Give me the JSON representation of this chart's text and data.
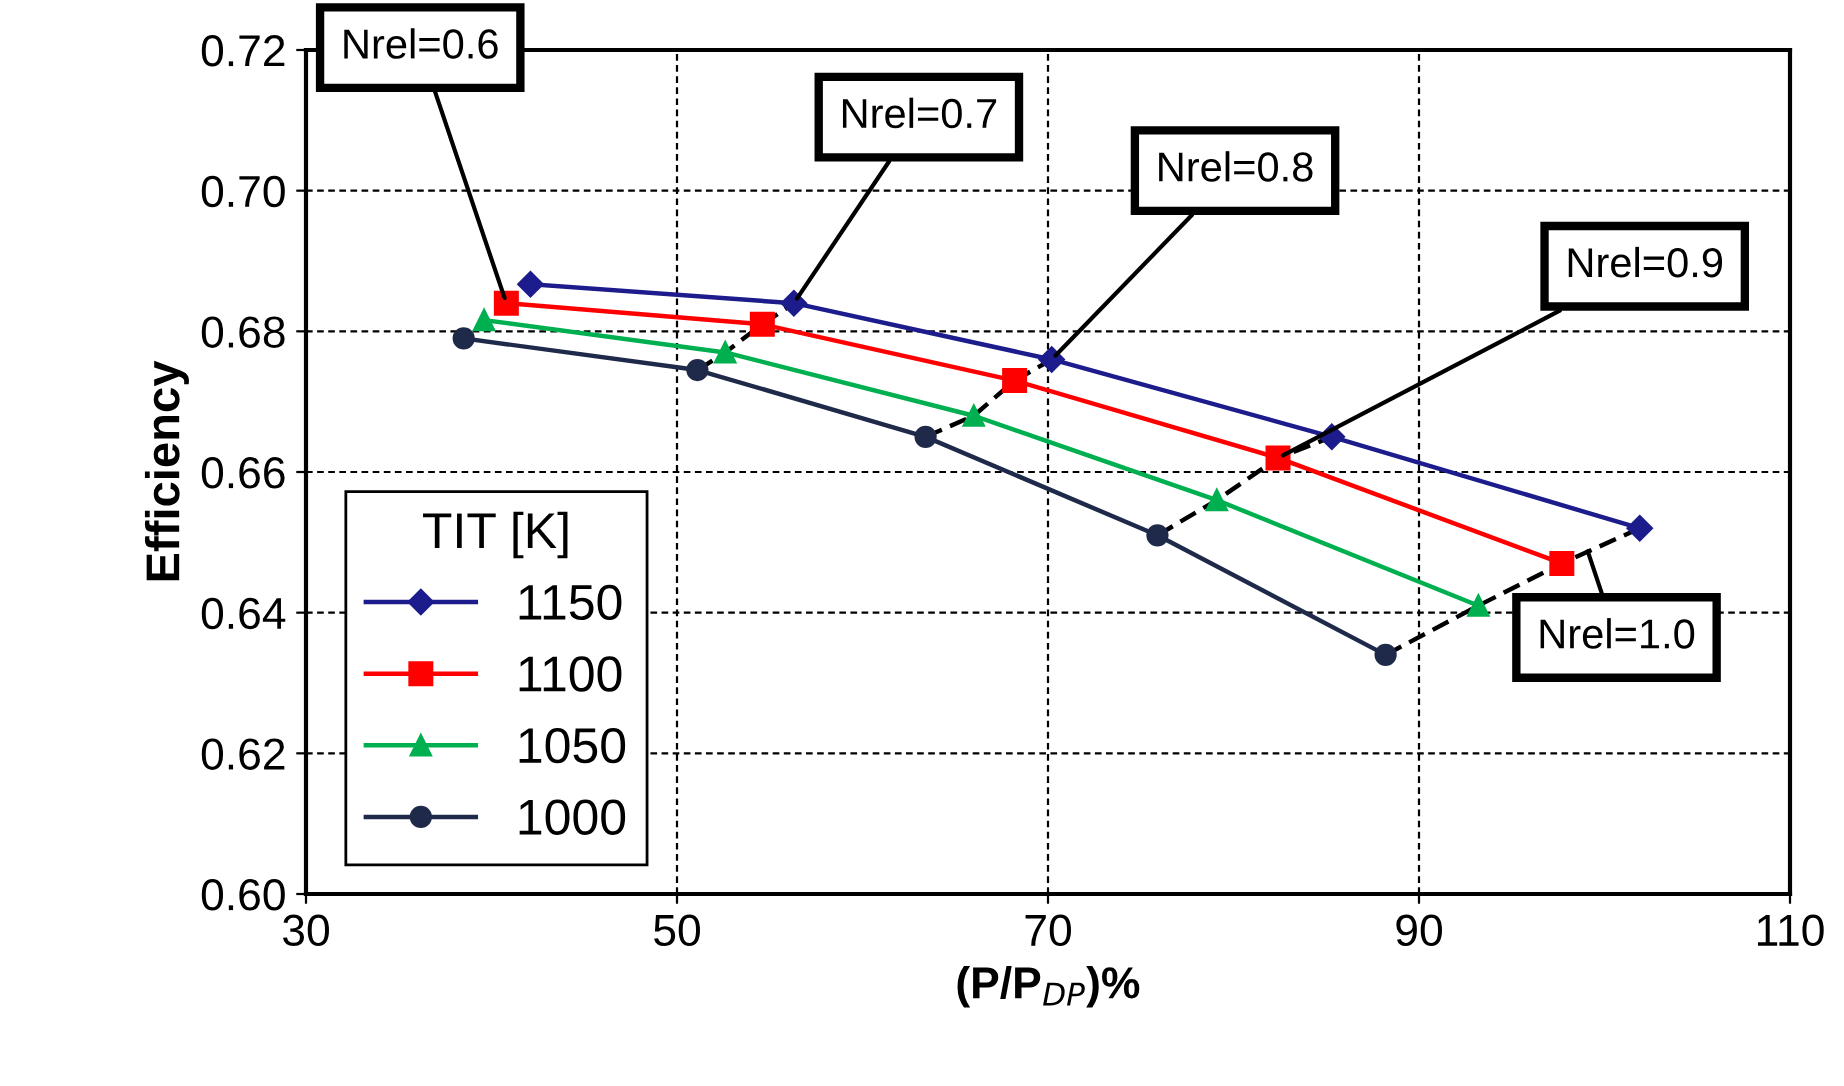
{
  "chart_data": {
    "type": "line",
    "xlabel": "(P/P$_{DP}$)%",
    "ylabel": "Efficiency",
    "legend_title": "TIT [K]",
    "legend": "bottom left",
    "grid": true,
    "xlim": [
      30,
      110
    ],
    "xticks": [
      30,
      50,
      70,
      90,
      110
    ],
    "ylim": [
      0.6,
      0.72
    ],
    "yticks": [
      {
        "value": 0.6,
        "label": "0.60"
      },
      {
        "value": 0.62,
        "label": "0.62"
      },
      {
        "value": 0.64,
        "label": "0.64"
      },
      {
        "value": 0.66,
        "label": "0.66"
      },
      {
        "value": 0.68,
        "label": "0.68"
      },
      {
        "value": 0.7,
        "label": "0.70"
      },
      {
        "value": 0.72,
        "label": "0.72"
      }
    ],
    "series": [
      {
        "name": "1150",
        "color": "#1c1c8c",
        "marker": "diamond",
        "x": [
          42.1,
          56.3,
          70.2,
          85.3,
          101.9
        ],
        "values": [
          0.6867,
          0.684,
          0.676,
          0.665,
          0.652
        ]
      },
      {
        "name": "1100",
        "color": "#ff0000",
        "marker": "square",
        "x": [
          40.8,
          54.6,
          68.2,
          82.4,
          97.7
        ],
        "values": [
          0.684,
          0.681,
          0.673,
          0.662,
          0.647
        ]
      },
      {
        "name": "1050",
        "color": "#00b050",
        "marker": "triangle",
        "x": [
          39.6,
          52.6,
          66.0,
          79.1,
          93.2
        ],
        "values": [
          0.6816,
          0.677,
          0.668,
          0.656,
          0.641
        ]
      },
      {
        "name": "1000",
        "color": "#1f2a4a",
        "marker": "circle",
        "x": [
          38.5,
          51.1,
          63.4,
          75.9,
          88.2
        ],
        "values": [
          0.679,
          0.6745,
          0.665,
          0.651,
          0.634
        ]
      },
      {
        "color": "#000000",
        "marker": "none",
        "line_style": "dashed",
        "x": [
          51.1,
          52.6,
          54.6,
          56.3
        ],
        "values": [
          0.6745,
          0.677,
          0.681,
          0.684
        ]
      },
      {
        "color": "#000000",
        "marker": "none",
        "line_style": "dashed",
        "x": [
          63.4,
          66.0,
          68.2,
          70.2
        ],
        "values": [
          0.665,
          0.668,
          0.673,
          0.676
        ]
      },
      {
        "color": "#000000",
        "marker": "none",
        "line_style": "dashed",
        "x": [
          75.9,
          79.1,
          82.4,
          85.3
        ],
        "values": [
          0.651,
          0.656,
          0.662,
          0.665
        ]
      },
      {
        "color": "#000000",
        "marker": "none",
        "line_style": "dashed",
        "x": [
          88.2,
          93.2,
          97.7,
          101.9
        ],
        "values": [
          0.634,
          0.641,
          0.647,
          0.652
        ]
      }
    ],
    "annotations": [
      {
        "text": "Nrel=0.6",
        "x": 40.8,
        "y": 0.684
      },
      {
        "text": "Nrel=0.7",
        "x": 56.3,
        "y": 0.684
      },
      {
        "text": "Nrel=0.8",
        "x": 70.2,
        "y": 0.676
      },
      {
        "text": "Nrel=0.9",
        "x": 82.4,
        "y": 0.662
      },
      {
        "text": "Nrel=1.0",
        "x": 99.0,
        "y": 0.6495
      }
    ]
  }
}
